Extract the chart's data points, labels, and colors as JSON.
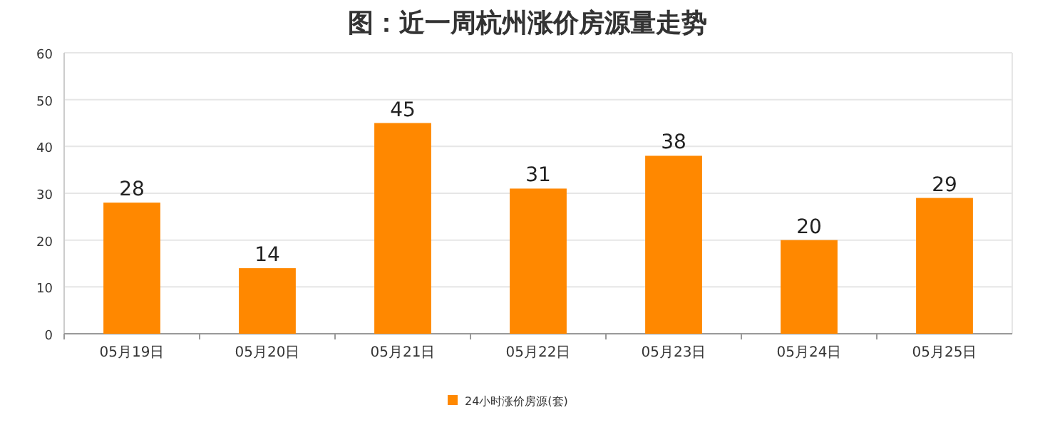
{
  "chart_data": {
    "type": "bar",
    "title": "图：近一周杭州涨价房源量走势",
    "categories": [
      "05月19日",
      "05月20日",
      "05月21日",
      "05月22日",
      "05月23日",
      "05月24日",
      "05月25日"
    ],
    "series": [
      {
        "name": "24小时涨价房源(套)",
        "color": "#ff8800",
        "values": [
          28,
          14,
          45,
          31,
          38,
          20,
          29
        ]
      }
    ],
    "ylim": [
      0,
      60
    ],
    "yticks": [
      0,
      10,
      20,
      30,
      40,
      50,
      60
    ],
    "grid": "y",
    "legend": "bottom",
    "data_labels": true
  }
}
